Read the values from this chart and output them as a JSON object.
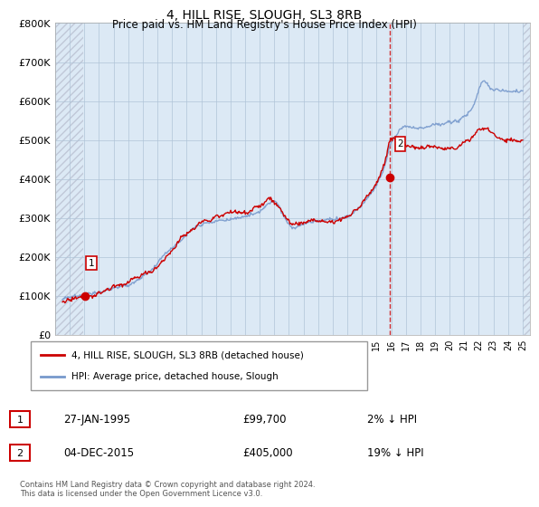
{
  "title": "4, HILL RISE, SLOUGH, SL3 8RB",
  "subtitle": "Price paid vs. HM Land Registry's House Price Index (HPI)",
  "ylim": [
    0,
    800000
  ],
  "yticks": [
    0,
    100000,
    200000,
    300000,
    400000,
    500000,
    600000,
    700000,
    800000
  ],
  "ytick_labels": [
    "£0",
    "£100K",
    "£200K",
    "£300K",
    "£400K",
    "£500K",
    "£600K",
    "£700K",
    "£800K"
  ],
  "hpi_color": "#7799cc",
  "price_color": "#cc0000",
  "dashed_line_color": "#cc0000",
  "sale1_x": 1995.07,
  "sale1_y": 99700,
  "sale1_label": "1",
  "sale2_x": 2015.92,
  "sale2_y": 405000,
  "sale2_label": "2",
  "legend_line1": "4, HILL RISE, SLOUGH, SL3 8RB (detached house)",
  "legend_line2": "HPI: Average price, detached house, Slough",
  "table_row1": [
    "1",
    "27-JAN-1995",
    "£99,700",
    "2% ↓ HPI"
  ],
  "table_row2": [
    "2",
    "04-DEC-2015",
    "£405,000",
    "19% ↓ HPI"
  ],
  "footer": "Contains HM Land Registry data © Crown copyright and database right 2024.\nThis data is licensed under the Open Government Licence v3.0.",
  "background_color": "#ffffff",
  "plot_bg_color": "#dce9f5",
  "hatch_color": "#c0c8d8",
  "grid_color": "#b0c4d8",
  "xlim_start": 1993,
  "xlim_end": 2025.5,
  "hatch_left_end": 1994.9,
  "hatch_right_start": 2025.0
}
